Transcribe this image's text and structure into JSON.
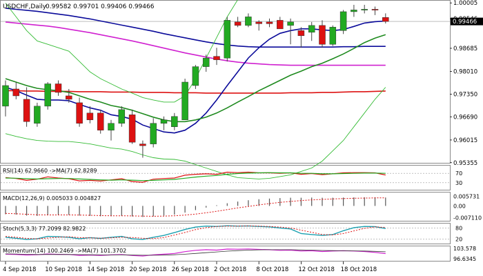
{
  "header": {
    "title": "USDCHF,Daily",
    "ohlc": "0.99582 0.99701 0.99406 0.99466"
  },
  "panels": {
    "rsi_label": "RSI(14) 62.9660 ->MA(7) 62.8289",
    "macd_label": "MACD(12,26,9) 0.005033 0.004827",
    "stoch_label": "Stoch(5,3,3) 77.2099 82.9822",
    "momentum_label": "Momentum(14) 100.2469 ->MA(7) 101.3702"
  },
  "colors": {
    "bull": "#22aa22",
    "bear": "#dd1111",
    "ma_blue": "#0a0a9a",
    "ma_magenta": "#d020d0",
    "ma_red": "#dd1111",
    "ma_green": "#1e8a1e",
    "bollinger": "#33bb33",
    "price_tag": "#000000",
    "grid": "#9a9a9a"
  },
  "chart_data": {
    "type": "candlestick",
    "symbol": "USDCHF",
    "timeframe": "Daily",
    "ylim": [
      0.9535,
      1.0005
    ],
    "candles": [
      {
        "o": 0.97,
        "h": 0.9775,
        "l": 0.967,
        "c": 0.976
      },
      {
        "o": 0.975,
        "h": 0.977,
        "l": 0.972,
        "c": 0.973
      },
      {
        "o": 0.972,
        "h": 0.9755,
        "l": 0.964,
        "c": 0.9655
      },
      {
        "o": 0.965,
        "h": 0.971,
        "l": 0.964,
        "c": 0.97
      },
      {
        "o": 0.97,
        "h": 0.977,
        "l": 0.969,
        "c": 0.9765
      },
      {
        "o": 0.9765,
        "h": 0.9775,
        "l": 0.973,
        "c": 0.974
      },
      {
        "o": 0.973,
        "h": 0.975,
        "l": 0.971,
        "c": 0.972
      },
      {
        "o": 0.971,
        "h": 0.9725,
        "l": 0.964,
        "c": 0.965
      },
      {
        "o": 0.968,
        "h": 0.97,
        "l": 0.965,
        "c": 0.966
      },
      {
        "o": 0.968,
        "h": 0.969,
        "l": 0.962,
        "c": 0.963
      },
      {
        "o": 0.963,
        "h": 0.966,
        "l": 0.96,
        "c": 0.965
      },
      {
        "o": 0.965,
        "h": 0.97,
        "l": 0.964,
        "c": 0.969
      },
      {
        "o": 0.9675,
        "h": 0.969,
        "l": 0.959,
        "c": 0.9595
      },
      {
        "o": 0.959,
        "h": 0.96,
        "l": 0.955,
        "c": 0.9585
      },
      {
        "o": 0.959,
        "h": 0.9665,
        "l": 0.958,
        "c": 0.965
      },
      {
        "o": 0.965,
        "h": 0.967,
        "l": 0.963,
        "c": 0.966
      },
      {
        "o": 0.964,
        "h": 0.968,
        "l": 0.963,
        "c": 0.967
      },
      {
        "o": 0.966,
        "h": 0.978,
        "l": 0.966,
        "c": 0.977
      },
      {
        "o": 0.976,
        "h": 0.982,
        "l": 0.975,
        "c": 0.9815
      },
      {
        "o": 0.9815,
        "h": 0.985,
        "l": 0.98,
        "c": 0.984
      },
      {
        "o": 0.9845,
        "h": 0.987,
        "l": 0.982,
        "c": 0.9835
      },
      {
        "o": 0.984,
        "h": 0.996,
        "l": 0.983,
        "c": 0.995
      },
      {
        "o": 0.9945,
        "h": 0.996,
        "l": 0.993,
        "c": 0.9935
      },
      {
        "o": 0.9935,
        "h": 0.997,
        "l": 0.993,
        "c": 0.996
      },
      {
        "o": 0.9945,
        "h": 0.995,
        "l": 0.992,
        "c": 0.994
      },
      {
        "o": 0.9945,
        "h": 0.9955,
        "l": 0.993,
        "c": 0.994
      },
      {
        "o": 0.995,
        "h": 0.996,
        "l": 0.9925,
        "c": 0.9925
      },
      {
        "o": 0.9935,
        "h": 0.9955,
        "l": 0.988,
        "c": 0.9945
      },
      {
        "o": 0.992,
        "h": 0.993,
        "l": 0.987,
        "c": 0.9905
      },
      {
        "o": 0.9915,
        "h": 0.9945,
        "l": 0.989,
        "c": 0.9935
      },
      {
        "o": 0.9935,
        "h": 0.995,
        "l": 0.987,
        "c": 0.988
      },
      {
        "o": 0.988,
        "h": 0.9935,
        "l": 0.9875,
        "c": 0.993
      },
      {
        "o": 0.992,
        "h": 0.998,
        "l": 0.991,
        "c": 0.9975
      },
      {
        "o": 0.9975,
        "h": 0.9995,
        "l": 0.996,
        "c": 0.998
      },
      {
        "o": 0.998,
        "h": 0.9995,
        "l": 0.997,
        "c": 0.9982
      },
      {
        "o": 0.9982,
        "h": 0.999,
        "l": 0.9965,
        "c": 0.998
      },
      {
        "o": 0.99582,
        "h": 0.99701,
        "l": 0.99406,
        "c": 0.99466
      }
    ],
    "moving_averages": [
      {
        "color": "ma_red",
        "values": [
          0.9745,
          0.9745,
          0.9744,
          0.9744,
          0.9743,
          0.9743,
          0.9743,
          0.9742,
          0.9742,
          0.9742,
          0.9741,
          0.9741,
          0.9741,
          0.974,
          0.974,
          0.974,
          0.9739,
          0.9739,
          0.9739,
          0.9738,
          0.9738,
          0.9738,
          0.9738,
          0.9738,
          0.9738,
          0.9738,
          0.9738,
          0.9739,
          0.9739,
          0.9739,
          0.974,
          0.974,
          0.9741,
          0.9742,
          0.9742,
          0.9743,
          0.9744
        ]
      },
      {
        "color": "ma_magenta",
        "values": [
          0.9945,
          0.9942,
          0.9939,
          0.9936,
          0.9933,
          0.9929,
          0.9924,
          0.9919,
          0.9914,
          0.9908,
          0.9902,
          0.9896,
          0.989,
          0.9883,
          0.9876,
          0.9869,
          0.9862,
          0.9855,
          0.9849,
          0.9843,
          0.9837,
          0.9832,
          0.9828,
          0.9825,
          0.9823,
          0.9821,
          0.982,
          0.9819,
          0.9819,
          0.9819,
          0.9819,
          0.9819,
          0.9819,
          0.9819,
          0.9819,
          0.9819,
          0.9819
        ]
      },
      {
        "color": "ma_blue",
        "values": [
          0.9985,
          0.9982,
          0.9979,
          0.9976,
          0.9972,
          0.9968,
          0.9964,
          0.9959,
          0.9954,
          0.9948,
          0.9942,
          0.9936,
          0.993,
          0.9924,
          0.9918,
          0.9911,
          0.9905,
          0.9899,
          0.9893,
          0.9887,
          0.9882,
          0.9878,
          0.9875,
          0.9873,
          0.9872,
          0.9872,
          0.9872,
          0.9872,
          0.9872,
          0.9872,
          0.9872,
          0.9872,
          0.9873,
          0.9873,
          0.9874,
          0.9874,
          0.9874
        ]
      },
      {
        "color": "ma_blue",
        "values": [
          0.9755,
          0.9745,
          0.9732,
          0.972,
          0.9718,
          0.9718,
          0.9716,
          0.9705,
          0.9695,
          0.9688,
          0.9675,
          0.967,
          0.9662,
          0.9645,
          0.9635,
          0.9625,
          0.9622,
          0.963,
          0.965,
          0.968,
          0.9718,
          0.976,
          0.98,
          0.984,
          0.987,
          0.9895,
          0.9912,
          0.992,
          0.9925,
          0.9925,
          0.9922,
          0.992,
          0.9923,
          0.9932,
          0.9942,
          0.9946,
          0.9948
        ]
      },
      {
        "color": "ma_green",
        "values": [
          0.978,
          0.977,
          0.976,
          0.9752,
          0.9748,
          0.9745,
          0.974,
          0.973,
          0.972,
          0.9712,
          0.9702,
          0.9696,
          0.9688,
          0.9678,
          0.9668,
          0.966,
          0.9655,
          0.9655,
          0.966,
          0.9668,
          0.968,
          0.9695,
          0.9712,
          0.9728,
          0.9745,
          0.976,
          0.9775,
          0.979,
          0.9802,
          0.9815,
          0.9825,
          0.9838,
          0.9852,
          0.9868,
          0.9885,
          0.9898,
          0.9908
        ]
      },
      {
        "color": "bollinger",
        "values": [
          1.0,
          0.996,
          0.992,
          0.989,
          0.988,
          0.987,
          0.986,
          0.983,
          0.98,
          0.978,
          0.9765,
          0.975,
          0.9738,
          0.9725,
          0.9718,
          0.9712,
          0.9712,
          0.973,
          0.978,
          0.984,
          0.99,
          0.996,
          1.001,
          1.005,
          1.008,
          1.01,
          1.011,
          1.011,
          1.011,
          1.01,
          1.009,
          1.008,
          1.008,
          1.0082,
          1.0085,
          1.0085,
          1.0085
        ]
      },
      {
        "color": "bollinger",
        "values": [
          0.962,
          0.9612,
          0.9605,
          0.96,
          0.9598,
          0.9597,
          0.9597,
          0.9594,
          0.959,
          0.9584,
          0.9578,
          0.9575,
          0.9568,
          0.9558,
          0.955,
          0.9546,
          0.9545,
          0.954,
          0.953,
          0.952,
          0.951,
          0.95,
          0.9492,
          0.949,
          0.9488,
          0.949,
          0.9495,
          0.95,
          0.951,
          0.952,
          0.954,
          0.957,
          0.96,
          0.964,
          0.968,
          0.972,
          0.9755
        ]
      }
    ],
    "y_tick_labels": [
      "1.00005",
      "0.99546",
      "0.98685",
      "0.98010",
      "0.97350",
      "0.96690",
      "0.96015",
      "0.95355"
    ],
    "y_tick_values": [
      1.00005,
      0.99546,
      0.98685,
      0.9801,
      0.9735,
      0.9669,
      0.96015,
      0.95355
    ],
    "current_price_label": "0.99466",
    "current_price": 0.99466,
    "x_tick_labels": [
      "4 Sep 2018",
      "10 Sep 2018",
      "14 Sep 2018",
      "20 Sep 2018",
      "26 Sep 2018",
      "2 Oct 2018",
      "8 Oct 2018",
      "12 Oct 2018",
      "18 Oct 2018"
    ],
    "x_tick_dates": [
      "2018-09-04",
      "2018-09-10",
      "2018-09-14",
      "2018-09-20",
      "2018-09-26",
      "2018-10-02",
      "2018-10-08",
      "2018-10-12",
      "2018-10-18"
    ],
    "rsi": {
      "ylim": [
        0,
        100
      ],
      "levels": [
        30,
        70
      ],
      "tick_labels": [
        "70",
        "30"
      ],
      "rsi": [
        52,
        48,
        40,
        45,
        55,
        50,
        47,
        38,
        40,
        37,
        42,
        47,
        35,
        32,
        45,
        48,
        50,
        62,
        66,
        68,
        66,
        75,
        73,
        75,
        72,
        72,
        70,
        72,
        66,
        69,
        64,
        68,
        72,
        73,
        73,
        72,
        63
      ],
      "ma": [
        50,
        49,
        47,
        46,
        47,
        48,
        48,
        46,
        44,
        42,
        41,
        42,
        41,
        39,
        40,
        42,
        44,
        49,
        54,
        58,
        61,
        66,
        69,
        71,
        72,
        73,
        72,
        72,
        70,
        70,
        68,
        68,
        69,
        70,
        71,
        71,
        70
      ]
    },
    "macd": {
      "ylim": [
        -0.0085,
        0.0072
      ],
      "tick_labels": [
        "0.005731",
        "0.00",
        "-0.007110"
      ],
      "tick_values": [
        0.005731,
        0.0,
        -0.00711
      ],
      "hist": [
        -0.005,
        -0.0052,
        -0.0058,
        -0.006,
        -0.0056,
        -0.0054,
        -0.0054,
        -0.0058,
        -0.006,
        -0.0062,
        -0.0062,
        -0.006,
        -0.0063,
        -0.0066,
        -0.0063,
        -0.0058,
        -0.0052,
        -0.004,
        -0.0025,
        -0.001,
        0.0004,
        0.0016,
        0.0026,
        0.0034,
        0.004,
        0.0044,
        0.0047,
        0.0049,
        0.0049,
        0.005,
        0.0049,
        0.0049,
        0.005,
        0.0051,
        0.0052,
        0.0052,
        0.005
      ],
      "signal": [
        -0.0045,
        -0.0047,
        -0.005,
        -0.0053,
        -0.0054,
        -0.0054,
        -0.0054,
        -0.0055,
        -0.0056,
        -0.0058,
        -0.0059,
        -0.0059,
        -0.006,
        -0.0061,
        -0.0062,
        -0.0061,
        -0.0059,
        -0.0055,
        -0.0049,
        -0.0041,
        -0.0032,
        -0.0022,
        -0.0012,
        -0.0003,
        0.0006,
        0.0014,
        0.0021,
        0.0027,
        0.0032,
        0.0036,
        0.0039,
        0.0042,
        0.0044,
        0.0046,
        0.0047,
        0.0048,
        0.0048
      ]
    },
    "stochastic": {
      "ylim": [
        0,
        100
      ],
      "tick_labels": [
        "80",
        "20"
      ],
      "tick_values": [
        80,
        20
      ],
      "k": [
        30,
        25,
        18,
        22,
        35,
        33,
        30,
        22,
        28,
        24,
        30,
        35,
        22,
        18,
        30,
        40,
        55,
        72,
        85,
        90,
        88,
        92,
        90,
        91,
        88,
        86,
        80,
        75,
        50,
        45,
        40,
        45,
        65,
        82,
        88,
        87,
        77
      ],
      "d": [
        35,
        30,
        24,
        22,
        26,
        30,
        33,
        28,
        27,
        25,
        27,
        30,
        29,
        25,
        23,
        29,
        42,
        56,
        71,
        82,
        88,
        90,
        90,
        91,
        90,
        88,
        85,
        80,
        68,
        57,
        45,
        43,
        50,
        64,
        78,
        86,
        83
      ]
    },
    "momentum": {
      "ylim": [
        95.8,
        104.6
      ],
      "tick_labels": [
        "103.578",
        "96.6345"
      ],
      "tick_values": [
        103.578,
        96.6345
      ],
      "mom": [
        99.8,
        99.6,
        99.2,
        99.4,
        99.9,
        99.7,
        99.6,
        99.0,
        99.2,
        99.0,
        99.3,
        99.6,
        98.9,
        98.6,
        99.3,
        99.8,
        100.3,
        101.5,
        102.4,
        102.8,
        102.5,
        103.2,
        103.1,
        103.3,
        103.0,
        102.8,
        102.4,
        102.5,
        101.9,
        102.1,
        101.6,
        101.9,
        102.1,
        101.9,
        101.6,
        101.0,
        100.2
      ],
      "ma": [
        100.0,
        99.9,
        99.7,
        99.6,
        99.6,
        99.6,
        99.6,
        99.5,
        99.4,
        99.3,
        99.3,
        99.3,
        99.2,
        99.1,
        99.1,
        99.2,
        99.4,
        99.8,
        100.3,
        100.8,
        101.3,
        101.8,
        102.2,
        102.5,
        102.7,
        102.8,
        102.8,
        102.8,
        102.6,
        102.5,
        102.3,
        102.2,
        102.1,
        102.0,
        101.9,
        101.7,
        101.4
      ]
    }
  }
}
